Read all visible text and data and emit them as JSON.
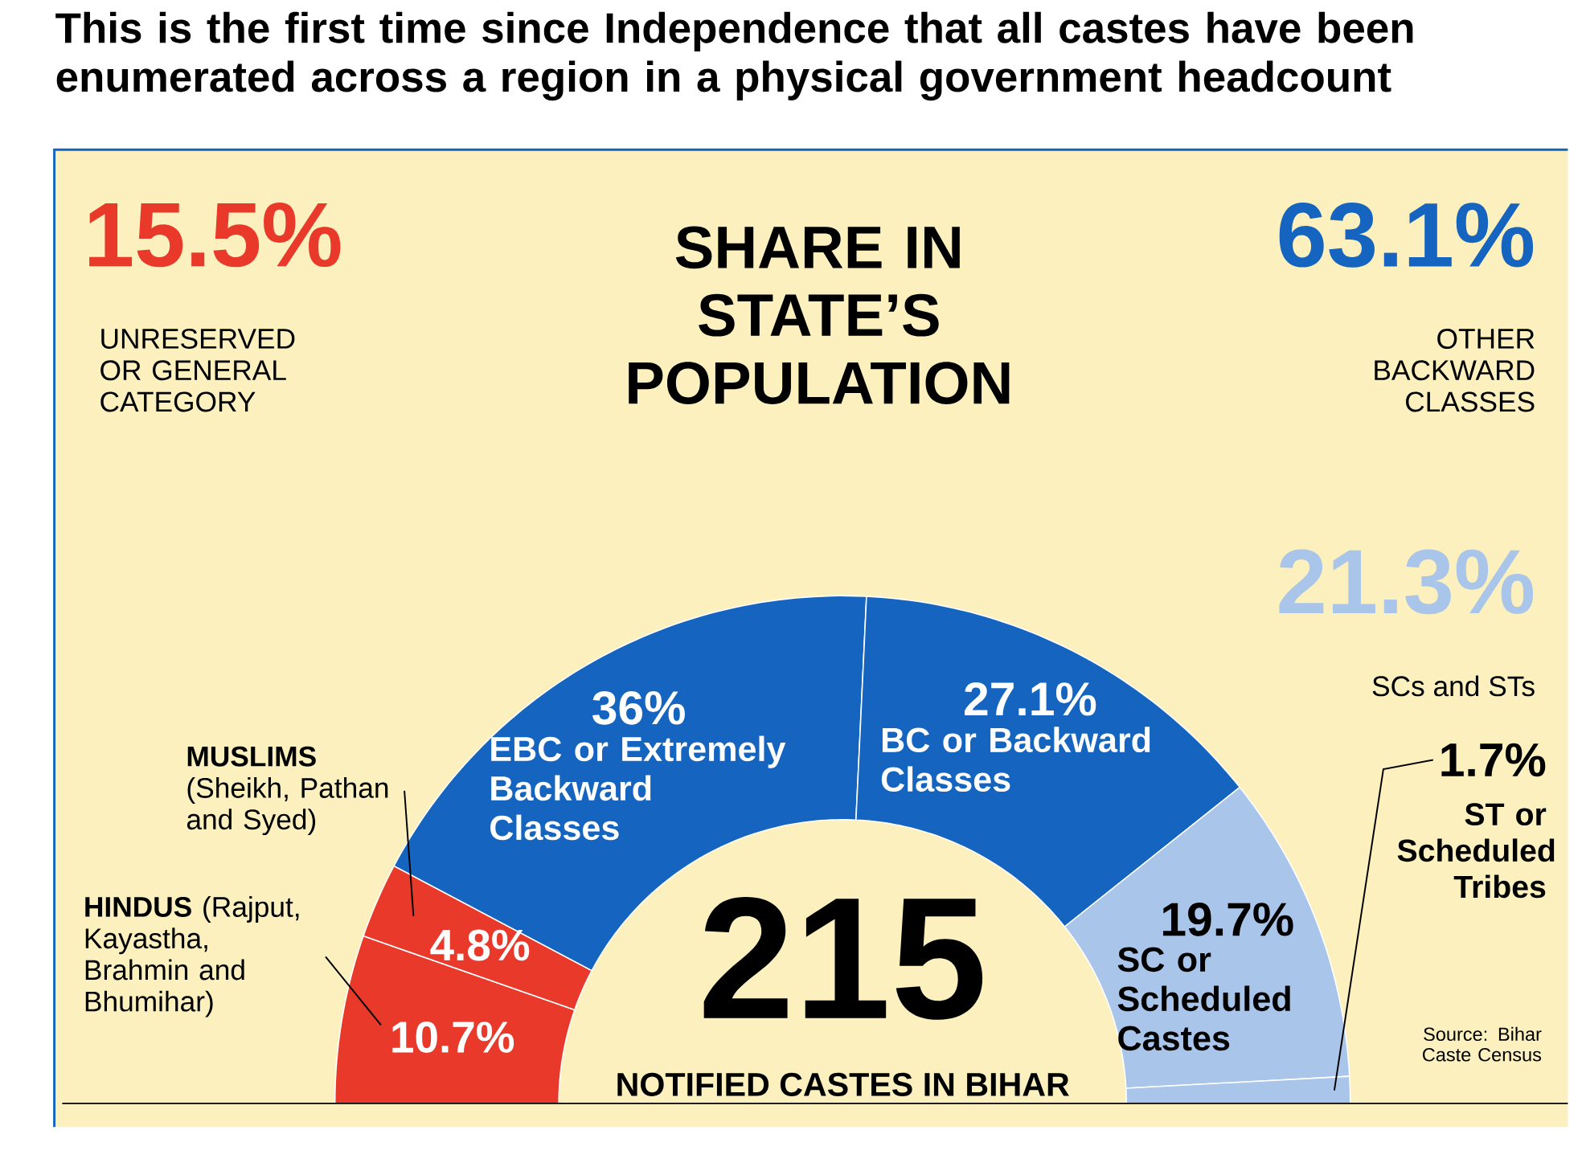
{
  "chart_data": {
    "type": "donut",
    "title": "This is the first time since Independence that all castes have been enumerated across a region in a physical government headcount",
    "subtitle": "SHARE IN STATE’S POPULATION",
    "categories": [
      "**HINDUS** (Rajput, Kayastha, Brahmin and Bhumihar)",
      "**MUSLIMS** (Sheikh, Pathan and Syed)",
      "EBC or Extremely Backward Classes",
      "BC or Backward Classes",
      "SC or Scheduled Castes",
      "ST or Scheduled Tribes"
    ],
    "values": [
      10.7,
      4.8,
      36,
      27.1,
      19.7,
      1.7
    ],
    "value_labels": [
      "10.7%",
      "4.8%",
      "36%",
      "27.1%",
      "19.7%",
      "1.7%"
    ],
    "colors": [
      "#e8392b",
      "#e8392b",
      "#1565c0",
      "#1565c0",
      "#a9c5ea",
      "#a9c5ea"
    ],
    "annotations": [
      "15.5%",
      "UNRESERVED OR GENERAL CATEGORY",
      "63.1%",
      "OTHER BACKWARD CLASSES",
      "21.3%",
      "SCs and STs",
      "215",
      "NOTIFIED CASTES IN BIHAR",
      "Source: Bihar Caste Census"
    ]
  }
}
